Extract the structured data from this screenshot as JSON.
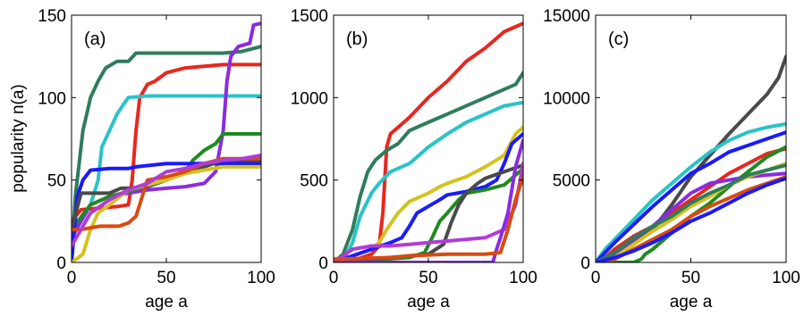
{
  "ylabel": "popularity n(a)",
  "chart_data": [
    {
      "type": "line",
      "panel_label": "(a)",
      "xlabel": "age a",
      "ylabel": "popularity n(a)",
      "xlim": [
        0,
        100
      ],
      "ylim": [
        0,
        150
      ],
      "xticks": [
        "0",
        "50",
        "100"
      ],
      "yticks": [
        "0",
        "50",
        "100",
        "150"
      ],
      "series": [
        {
          "color": "#2e7d5b",
          "x": [
            0,
            2,
            4,
            6,
            8,
            10,
            14,
            18,
            24,
            30,
            34,
            40,
            60,
            80,
            90,
            100
          ],
          "y": [
            0,
            40,
            60,
            80,
            90,
            100,
            110,
            118,
            122,
            122,
            127,
            127,
            127,
            127,
            128,
            131
          ]
        },
        {
          "color": "#e8271e",
          "x": [
            0,
            5,
            15,
            25,
            30,
            32,
            34,
            36,
            40,
            44,
            50,
            60,
            80,
            100
          ],
          "y": [
            25,
            32,
            33,
            34,
            35,
            50,
            80,
            100,
            108,
            110,
            115,
            118,
            120,
            120
          ]
        },
        {
          "color": "#29c3c8",
          "x": [
            0,
            5,
            10,
            14,
            16,
            20,
            24,
            28,
            30,
            40,
            60,
            80,
            100
          ],
          "y": [
            15,
            25,
            35,
            50,
            70,
            80,
            90,
            97,
            100,
            101,
            101,
            101,
            101
          ]
        },
        {
          "color": "#8a2be2",
          "x": [
            0,
            10,
            20,
            30,
            40,
            50,
            60,
            70,
            76,
            80,
            82,
            84,
            88,
            94,
            96,
            100
          ],
          "y": [
            15,
            35,
            40,
            42,
            44,
            45,
            46,
            48,
            55,
            80,
            110,
            125,
            131,
            133,
            144,
            145
          ]
        },
        {
          "color": "#1f8a1f",
          "x": [
            0,
            10,
            20,
            30,
            40,
            50,
            60,
            64,
            70,
            76,
            80,
            90,
            100
          ],
          "y": [
            20,
            35,
            40,
            43,
            47,
            50,
            55,
            62,
            68,
            72,
            78,
            78,
            78
          ]
        },
        {
          "color": "#1a1aff",
          "x": [
            0,
            3,
            6,
            10,
            20,
            30,
            34,
            50,
            60,
            80,
            100
          ],
          "y": [
            0,
            40,
            50,
            56,
            57,
            57,
            58,
            60,
            60,
            60,
            60
          ]
        },
        {
          "color": "#4a4a4a",
          "x": [
            0,
            5,
            10,
            20,
            26,
            30,
            40,
            50,
            60,
            70,
            80,
            100
          ],
          "y": [
            20,
            42,
            42,
            42,
            45,
            45,
            46,
            50,
            56,
            58,
            62,
            62
          ]
        },
        {
          "color": "#d4c21f",
          "x": [
            0,
            6,
            10,
            14,
            20,
            30,
            40,
            50,
            60,
            70,
            80,
            100
          ],
          "y": [
            0,
            5,
            20,
            30,
            35,
            44,
            47,
            50,
            54,
            56,
            58,
            58
          ]
        },
        {
          "color": "#d94a0f",
          "x": [
            0,
            5,
            15,
            25,
            30,
            34,
            40,
            50,
            60,
            70,
            80,
            100
          ],
          "y": [
            20,
            20,
            22,
            22,
            24,
            28,
            50,
            52,
            55,
            60,
            63,
            63
          ]
        },
        {
          "color": "#b23cd6",
          "x": [
            0,
            10,
            20,
            30,
            40,
            50,
            60,
            70,
            80,
            90,
            100
          ],
          "y": [
            10,
            30,
            38,
            44,
            48,
            55,
            57,
            60,
            62,
            63,
            65
          ]
        }
      ]
    },
    {
      "type": "line",
      "panel_label": "(b)",
      "xlabel": "age a",
      "xlim": [
        0,
        100
      ],
      "ylim": [
        0,
        1500
      ],
      "xticks": [
        "0",
        "50",
        "100"
      ],
      "yticks": [
        "0",
        "500",
        "1000",
        "1500"
      ],
      "series": [
        {
          "color": "#e8271e",
          "x": [
            0,
            10,
            20,
            24,
            26,
            28,
            30,
            34,
            40,
            50,
            60,
            70,
            80,
            90,
            100
          ],
          "y": [
            0,
            10,
            50,
            100,
            300,
            700,
            780,
            820,
            880,
            1000,
            1100,
            1220,
            1300,
            1400,
            1450
          ]
        },
        {
          "color": "#2e7d5b",
          "x": [
            0,
            5,
            10,
            14,
            18,
            22,
            28,
            34,
            40,
            50,
            60,
            70,
            80,
            90,
            96,
            100
          ],
          "y": [
            0,
            50,
            200,
            400,
            550,
            620,
            680,
            720,
            800,
            850,
            900,
            950,
            1000,
            1050,
            1080,
            1150
          ]
        },
        {
          "color": "#29c3c8",
          "x": [
            0,
            6,
            10,
            14,
            20,
            24,
            30,
            40,
            50,
            60,
            70,
            80,
            90,
            100
          ],
          "y": [
            0,
            30,
            120,
            280,
            420,
            480,
            550,
            600,
            700,
            780,
            850,
            900,
            950,
            970
          ]
        },
        {
          "color": "#d4c21f",
          "x": [
            0,
            20,
            24,
            28,
            34,
            40,
            50,
            56,
            60,
            70,
            80,
            90,
            96,
            100
          ],
          "y": [
            0,
            80,
            120,
            200,
            300,
            370,
            420,
            460,
            480,
            520,
            580,
            650,
            780,
            820
          ]
        },
        {
          "color": "#1a1aff",
          "x": [
            0,
            30,
            36,
            40,
            44,
            50,
            56,
            60,
            70,
            80,
            86,
            90,
            94,
            100
          ],
          "y": [
            0,
            120,
            150,
            220,
            300,
            340,
            380,
            410,
            430,
            460,
            500,
            600,
            720,
            780
          ]
        },
        {
          "color": "#1f8a1f",
          "x": [
            0,
            40,
            48,
            52,
            56,
            60,
            66,
            70,
            80,
            90,
            100
          ],
          "y": [
            0,
            30,
            60,
            150,
            250,
            300,
            380,
            420,
            440,
            470,
            570
          ]
        },
        {
          "color": "#4a4a4a",
          "x": [
            0,
            50,
            54,
            58,
            62,
            66,
            70,
            76,
            80,
            90,
            100
          ],
          "y": [
            0,
            50,
            80,
            110,
            240,
            350,
            420,
            480,
            510,
            550,
            590
          ]
        },
        {
          "color": "#b23cd6",
          "x": [
            0,
            10,
            20,
            30,
            40,
            50,
            60,
            70,
            80,
            90,
            96,
            100
          ],
          "y": [
            0,
            80,
            100,
            100,
            110,
            120,
            130,
            140,
            150,
            200,
            350,
            600
          ]
        },
        {
          "color": "#8a2be2",
          "x": [
            0,
            70,
            80,
            84,
            86,
            88,
            92,
            96,
            100
          ],
          "y": [
            0,
            0,
            0,
            0,
            80,
            150,
            300,
            580,
            740
          ]
        },
        {
          "color": "#d94a0f",
          "x": [
            0,
            30,
            40,
            60,
            80,
            88,
            92,
            96,
            100
          ],
          "y": [
            20,
            30,
            40,
            50,
            50,
            60,
            200,
            380,
            520
          ]
        }
      ]
    },
    {
      "type": "line",
      "panel_label": "(c)",
      "xlabel": "age a",
      "xlim": [
        0,
        100
      ],
      "ylim": [
        0,
        15000
      ],
      "xticks": [
        "0",
        "50",
        "100"
      ],
      "yticks": [
        "0",
        "5000",
        "10000",
        "15000"
      ],
      "series": [
        {
          "color": "#4a4a4a",
          "x": [
            0,
            5,
            10,
            20,
            30,
            40,
            50,
            60,
            70,
            80,
            90,
            96,
            100
          ],
          "y": [
            0,
            200,
            500,
            1200,
            2000,
            3500,
            5200,
            6500,
            7800,
            9000,
            10200,
            11200,
            12500
          ]
        },
        {
          "color": "#29c3c8",
          "x": [
            0,
            5,
            10,
            20,
            30,
            40,
            50,
            60,
            70,
            80,
            90,
            100
          ],
          "y": [
            0,
            800,
            1400,
            2600,
            3800,
            4800,
            5800,
            6700,
            7400,
            7900,
            8200,
            8400
          ]
        },
        {
          "color": "#1a1aff",
          "x": [
            0,
            5,
            10,
            20,
            30,
            40,
            50,
            60,
            70,
            80,
            90,
            100
          ],
          "y": [
            0,
            600,
            1200,
            2300,
            3400,
            4400,
            5400,
            6000,
            6700,
            7100,
            7500,
            7900
          ]
        },
        {
          "color": "#e8271e",
          "x": [
            0,
            5,
            10,
            20,
            30,
            40,
            50,
            60,
            70,
            80,
            90,
            100
          ],
          "y": [
            0,
            300,
            800,
            1600,
            2200,
            3000,
            3800,
            4600,
            5400,
            6000,
            6600,
            6900
          ]
        },
        {
          "color": "#1f8a1f",
          "x": [
            0,
            20,
            24,
            26,
            30,
            40,
            50,
            60,
            70,
            80,
            90,
            100
          ],
          "y": [
            0,
            0,
            200,
            500,
            800,
            1800,
            2800,
            3600,
            4600,
            5500,
            6400,
            7000
          ]
        },
        {
          "color": "#8a2be2",
          "x": [
            0,
            10,
            20,
            30,
            40,
            50,
            60,
            70,
            80,
            90,
            100
          ],
          "y": [
            0,
            400,
            1400,
            2200,
            3200,
            4200,
            4800,
            5000,
            5200,
            5300,
            5400
          ]
        },
        {
          "color": "#d4c21f",
          "x": [
            0,
            10,
            20,
            30,
            40,
            50,
            60,
            70,
            80,
            90,
            100
          ],
          "y": [
            0,
            300,
            1100,
            1900,
            2600,
            3400,
            4000,
            4700,
            5200,
            5600,
            6000
          ]
        },
        {
          "color": "#2e7d5b",
          "x": [
            0,
            10,
            20,
            30,
            40,
            50,
            60,
            70,
            80,
            90,
            100
          ],
          "y": [
            0,
            600,
            1500,
            2200,
            2800,
            3600,
            4200,
            4700,
            5300,
            5600,
            5900
          ]
        },
        {
          "color": "#d94a0f",
          "x": [
            0,
            10,
            20,
            30,
            40,
            50,
            60,
            70,
            80,
            90,
            100
          ],
          "y": [
            0,
            200,
            800,
            1400,
            2000,
            2800,
            3400,
            3900,
            4400,
            4800,
            5200
          ]
        },
        {
          "color": "#1a1aff",
          "x": [
            0,
            10,
            20,
            30,
            40,
            50,
            60,
            70,
            80,
            90,
            100
          ],
          "y": [
            0,
            300,
            700,
            1200,
            1800,
            2500,
            3000,
            3600,
            4200,
            4700,
            5100
          ]
        }
      ]
    }
  ]
}
